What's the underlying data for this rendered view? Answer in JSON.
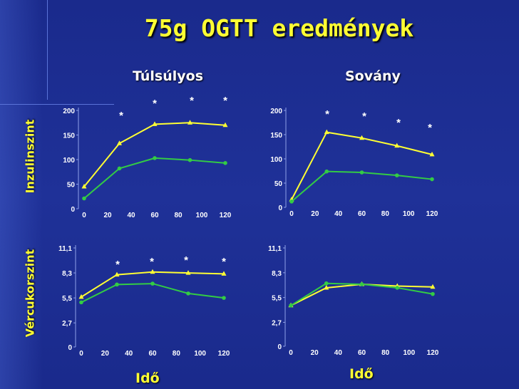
{
  "title": "75g OGTT eredmények",
  "columns": [
    "Túlsúlyos",
    "Sovány"
  ],
  "row_labels": [
    "Inzulinszint",
    "Vércukorszint"
  ],
  "x_axis_label": "Idő",
  "colors": {
    "obese": "#ffff33",
    "lean": "#33cc44",
    "title": "#ffff33"
  },
  "chart_data": [
    {
      "type": "line",
      "panel": "Inzulinszint - Túlsúlyos",
      "x": [
        0,
        30,
        60,
        90,
        120
      ],
      "xticks": [
        "0",
        "20",
        "40",
        "60",
        "80",
        "100",
        "120"
      ],
      "yticks": [
        "0",
        "50",
        "100",
        "150",
        "200"
      ],
      "ylim": [
        0,
        200
      ],
      "xlim": [
        0,
        120
      ],
      "series": [
        {
          "values": [
            45,
            133,
            172,
            175,
            170
          ]
        },
        {
          "values": [
            21,
            82,
            103,
            99,
            93
          ]
        }
      ],
      "stars": [
        "*",
        "*",
        "*",
        "*"
      ]
    },
    {
      "type": "line",
      "panel": "Inzulinszint - Sovány",
      "x": [
        0,
        30,
        60,
        90,
        120
      ],
      "xticks": [
        "0",
        "20",
        "40",
        "60",
        "80",
        "100",
        "120"
      ],
      "yticks": [
        "0",
        "50",
        "100",
        "150",
        "200"
      ],
      "ylim": [
        0,
        200
      ],
      "xlim": [
        0,
        120
      ],
      "series": [
        {
          "values": [
            16,
            155,
            143,
            127,
            109
          ]
        },
        {
          "values": [
            12,
            74,
            72,
            66,
            58
          ]
        }
      ],
      "stars": [
        "*",
        "*",
        "*",
        "*"
      ]
    },
    {
      "type": "line",
      "panel": "Vércukorszint - Túlsúlyos",
      "x": [
        0,
        30,
        60,
        90,
        120
      ],
      "xticks": [
        "0",
        "20",
        "40",
        "60",
        "80",
        "100",
        "120"
      ],
      "yticks": [
        "0",
        "2,7",
        "5,5",
        "8,3",
        "11,1"
      ],
      "ylim": [
        0,
        11.1
      ],
      "xlim": [
        0,
        120
      ],
      "series": [
        {
          "values": [
            5.6,
            8.1,
            8.4,
            8.3,
            8.2
          ]
        },
        {
          "values": [
            5.0,
            7.0,
            7.1,
            6.0,
            5.5
          ]
        }
      ],
      "stars": [
        "*",
        "*",
        "*",
        "*"
      ]
    },
    {
      "type": "line",
      "panel": "Vércukorszint - Sovány",
      "x": [
        0,
        30,
        60,
        90,
        120
      ],
      "xticks": [
        "0",
        "20",
        "40",
        "60",
        "80",
        "100",
        "120"
      ],
      "yticks": [
        "0",
        "2,7",
        "5,5",
        "8,3",
        "11,1"
      ],
      "ylim": [
        0,
        11.1
      ],
      "xlim": [
        0,
        120
      ],
      "series": [
        {
          "values": [
            4.6,
            6.6,
            7.0,
            6.8,
            6.7
          ]
        },
        {
          "values": [
            4.6,
            7.1,
            7.0,
            6.6,
            5.9
          ]
        }
      ],
      "stars": []
    }
  ]
}
